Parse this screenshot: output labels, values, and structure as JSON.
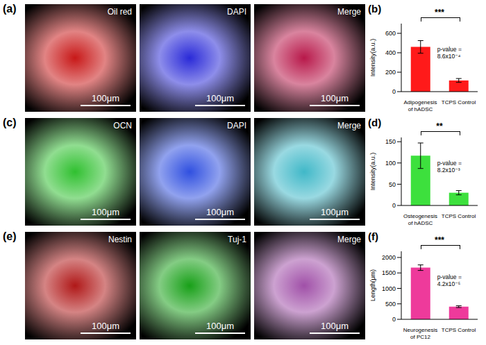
{
  "panels": [
    {
      "label": "(a)",
      "images": [
        {
          "title": "Oil red",
          "color": "#c81818",
          "scale_bar": "100μm"
        },
        {
          "title": "DAPI",
          "color": "#2a2ad8",
          "scale_bar": "100μm"
        },
        {
          "title": "Merge",
          "color": "#b8184a",
          "scale_bar": "100μm"
        }
      ]
    },
    {
      "label": "(c)",
      "images": [
        {
          "title": "OCN",
          "color": "#30c030",
          "scale_bar": "100μm"
        },
        {
          "title": "DAPI",
          "color": "#3050e0",
          "scale_bar": "100μm"
        },
        {
          "title": "Merge",
          "color": "#40b8c8",
          "scale_bar": "100μm"
        }
      ]
    },
    {
      "label": "(e)",
      "images": [
        {
          "title": "Nestin",
          "color": "#b01818",
          "scale_bar": "100μm"
        },
        {
          "title": "Tuj-1",
          "color": "#18a018",
          "scale_bar": "100μm"
        },
        {
          "title": "Merge",
          "color": "#a050a8",
          "scale_bar": "100μm"
        }
      ]
    }
  ],
  "chart_data": [
    {
      "label": "(b)",
      "type": "bar",
      "categories": [
        "Adipogenesis of hADSC",
        "TCPS Control"
      ],
      "values": [
        460,
        115
      ],
      "errors": [
        65,
        20
      ],
      "color": "#ff1a1a",
      "ylabel": "Intensity(a.u.)",
      "ylim": [
        0,
        700
      ],
      "yticks": [
        0,
        200,
        400,
        600
      ],
      "significance": "***",
      "p_value_text": "p-value = 8.6x10⁻⁴"
    },
    {
      "label": "(d)",
      "type": "bar",
      "categories": [
        "Osteogenesis of hADSC",
        "TCPS Control"
      ],
      "values": [
        117,
        30
      ],
      "errors": [
        30,
        5
      ],
      "color": "#3de03d",
      "ylabel": "Intensity(a.u.)",
      "ylim": [
        0,
        160
      ],
      "yticks": [
        0,
        50,
        100,
        150
      ],
      "significance": "**",
      "p_value_text": "p-value = 8.2x10⁻³"
    },
    {
      "label": "(f)",
      "type": "bar",
      "categories": [
        "Neurogenesis of PC12",
        "TCPS Control"
      ],
      "values": [
        1670,
        410
      ],
      "errors": [
        90,
        30
      ],
      "color": "#ee3a9b",
      "ylabel": "Length(μm)",
      "ylim": [
        0,
        2200
      ],
      "yticks": [
        0,
        500,
        1000,
        1500,
        2000
      ],
      "significance": "***",
      "p_value_text": "p-value = 4.2x10⁻⁵"
    }
  ]
}
